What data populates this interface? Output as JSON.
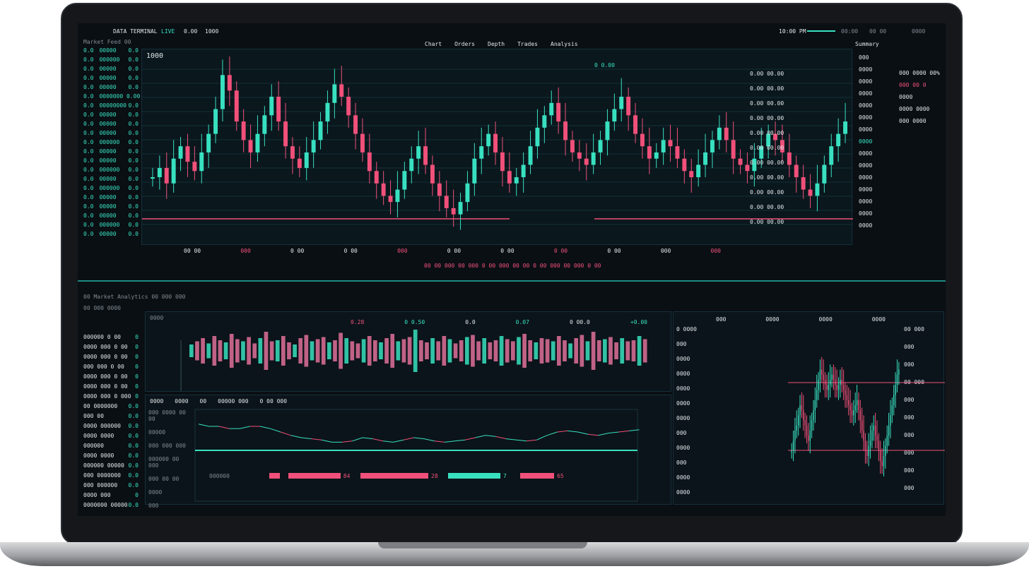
{
  "topbar": {
    "title": "DATA TERMINAL",
    "items": [
      "LIVE",
      "0.00",
      "1000"
    ],
    "clock": "10:00 PM",
    "status": [
      "00:00",
      "00 00",
      "0000"
    ]
  },
  "watchlist": {
    "title": "Market Feed 00",
    "rows": [
      [
        "0.0",
        "00000",
        "0.0"
      ],
      [
        "0.0",
        "000000",
        "0.0"
      ],
      [
        "0.0",
        "00000",
        "0.0"
      ],
      [
        "0.0",
        "00000",
        "0.0"
      ],
      [
        "0.0",
        "00000",
        "0.0"
      ],
      [
        "0.0",
        "0000000 0.0",
        "0.0"
      ],
      [
        "0.0",
        "00000000",
        "0.0"
      ],
      [
        "0.0",
        "00000",
        "0.0"
      ],
      [
        "0.0",
        "00000",
        "0.0"
      ],
      [
        "0.0",
        "00000",
        "0.0"
      ],
      [
        "0.0",
        "000000",
        "0.0"
      ],
      [
        "0.0",
        "00000",
        "0.0"
      ],
      [
        "0.0",
        "00000",
        "0.0"
      ],
      [
        "0.0",
        "000000",
        "0.0"
      ],
      [
        "0.0",
        "00000",
        "0.0"
      ],
      [
        "0.0",
        "000000",
        "0.0"
      ],
      [
        "0.0",
        "00000",
        "0.0"
      ],
      [
        "0.0",
        "00000",
        "0.0"
      ],
      [
        "0.0",
        "00000",
        "0.0"
      ],
      [
        "0.0",
        "000000",
        "0.0"
      ],
      [
        "0.0",
        "00000",
        "0.0"
      ]
    ]
  },
  "main_chart": {
    "title": "1000",
    "tabs": [
      "Chart",
      "Orders",
      "Depth",
      "Trades",
      "Analysis"
    ],
    "header_value": "0 0.00",
    "overlay_rows": [
      "0.00 00.00",
      "0.00 00.00",
      "0.00 00.00",
      "0.00 00.00",
      "0.00 00.00",
      "0.00 00.00",
      "0.00 00.00",
      "0.00 00.00",
      "0.00 00.00",
      "0.00 00.00",
      "0.00 00.00"
    ],
    "closes": [
      52,
      55,
      50,
      58,
      62,
      57,
      54,
      60,
      66,
      74,
      85,
      80,
      70,
      64,
      60,
      66,
      72,
      78,
      70,
      62,
      58,
      55,
      60,
      64,
      70,
      76,
      82,
      78,
      72,
      66,
      60,
      54,
      50,
      46,
      44,
      48,
      54,
      58,
      62,
      56,
      50,
      46,
      42,
      40,
      44,
      50,
      58,
      62,
      66,
      60,
      54,
      50,
      52,
      56,
      62,
      68,
      72,
      76,
      70,
      64,
      60,
      58,
      56,
      60,
      64,
      70,
      74,
      78,
      72,
      66,
      62,
      58,
      60,
      64,
      62,
      58,
      54,
      52,
      56,
      60,
      64,
      68,
      64,
      58,
      56,
      54,
      58,
      62,
      66,
      64,
      60,
      56,
      52,
      48,
      46,
      50,
      56,
      62,
      66,
      70
    ]
  },
  "axis_row1": [
    "00 00",
    "000",
    "0 00",
    "0 00",
    "000",
    "0 00",
    "0 00",
    "0 00",
    "0 00",
    "000",
    "000"
  ],
  "axis_row2": "00 00 000  00 000 0 00 000  00 00 0 00 000 00 000 0 00",
  "right_panel": {
    "title": "Summary",
    "rows": [
      "000",
      "0000",
      "0000",
      "0000",
      "0000",
      "0000",
      "0000",
      "0000",
      "0000",
      "0000",
      "0000",
      "0000",
      "0000",
      "0000",
      "0000"
    ],
    "alerts": [
      "000 0000 00%",
      "000 00 0",
      "0000",
      "0000 0000",
      "000 0000"
    ]
  },
  "section_title": "00 Market Analytics 00 000 000",
  "bottom_left": {
    "title": "00 000 0000",
    "rows": [
      "000000 0 00",
      "0000 000 0 00",
      "0000 000 0 00",
      "000 000 0 00",
      "0000 000 0 00",
      "0000 000 0 00",
      "0000 000 0 000",
      "00 0000000",
      "000 00",
      "0000 000000",
      "0000 0000",
      "000000",
      "0000 0000",
      "000000 00000",
      "000 0000000",
      "000 000000",
      "0000 000",
      "0000000 00000"
    ],
    "vals": [
      "0",
      "0",
      "0",
      "0",
      "0",
      "0",
      "0",
      "0.0",
      "0.0",
      "0.0",
      "0.0",
      "0.0",
      "0.0",
      "0.0",
      "0.0",
      "0.0",
      "0",
      "0.0"
    ]
  },
  "volume_panel": {
    "label": "0000",
    "stats": [
      "0.28",
      "0 0.50",
      "0.0",
      "0.07",
      "0 00.0",
      "+0.00"
    ],
    "bars": [
      6,
      9,
      12,
      7,
      14,
      10,
      8,
      16,
      11,
      9,
      13,
      7,
      12,
      18,
      9,
      10,
      14,
      8,
      6,
      12,
      15,
      9,
      11,
      13,
      8,
      10,
      17,
      12,
      9,
      7,
      11,
      14,
      10,
      8,
      12,
      16,
      9,
      11,
      13,
      20,
      10,
      8,
      12,
      9,
      14,
      11,
      7,
      10,
      13,
      15,
      9,
      12,
      8,
      10,
      14,
      11,
      9,
      13,
      16,
      10,
      8,
      12,
      11,
      9,
      14,
      10,
      7,
      12,
      15,
      9,
      18,
      10,
      11,
      13,
      8,
      12,
      9,
      10,
      14,
      11
    ]
  },
  "line_panel": {
    "tabs": [
      "0000",
      "0000",
      "00",
      "00000 000",
      "0 00 000"
    ],
    "side": [
      "000 0000 00 00",
      "00000",
      "000 000 000",
      "000000 00 000",
      "000 00 00",
      "0000",
      "000"
    ],
    "line": [
      62,
      60,
      60,
      58,
      58,
      60,
      60,
      58,
      55,
      52,
      50,
      49,
      48,
      46,
      46,
      47,
      50,
      49,
      47,
      46,
      48,
      50,
      49,
      47,
      46,
      47,
      48,
      50,
      52,
      51,
      49,
      48,
      47,
      48,
      52,
      55,
      56,
      55,
      53,
      52,
      54,
      55,
      56,
      57
    ],
    "bars": [
      {
        "color": "#f0507a",
        "width": 0.02,
        "label": ""
      },
      {
        "color": "#f0507a",
        "width": 0.1,
        "label": "84"
      },
      {
        "color": "#f0507a",
        "width": 0.13,
        "label": "28"
      },
      {
        "color": "#38e0c0",
        "width": 0.1,
        "label": "7"
      },
      {
        "color": "#f0507a",
        "width": 0.065,
        "label": "65"
      }
    ],
    "bar_label": "000000"
  },
  "side_chart": {
    "header": [
      "000",
      "0000",
      "0000",
      "0000"
    ],
    "closes": [
      40,
      44,
      48,
      50,
      54,
      58,
      56,
      52,
      50,
      46,
      44,
      48,
      52,
      56,
      60,
      64,
      68,
      72,
      70,
      68,
      66,
      64,
      66,
      68,
      70,
      68,
      66,
      64,
      66,
      68,
      66,
      64,
      62,
      60,
      58,
      56,
      54,
      56,
      58,
      60,
      56,
      52,
      48,
      44,
      40,
      38,
      42,
      44,
      48,
      50,
      46,
      44,
      40,
      36,
      34,
      38,
      42,
      46,
      50,
      54,
      58,
      62,
      66,
      70,
      72
    ]
  },
  "side_lists": {
    "left": [
      "0 0000",
      "000",
      "0000",
      "0000",
      "0000",
      "0000",
      "0000",
      "000",
      "0000",
      "000",
      "0000",
      "0000"
    ],
    "right": [
      "00 000",
      "000",
      "000",
      "00 000",
      "000",
      "000",
      "000",
      "000",
      "000",
      "000"
    ]
  }
}
